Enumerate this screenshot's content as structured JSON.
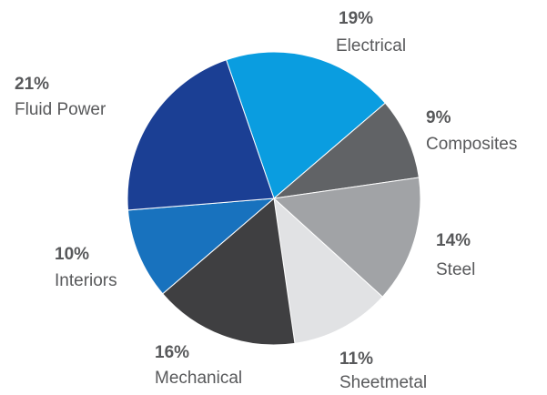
{
  "chart_data": {
    "type": "pie",
    "title": "",
    "legend": "none",
    "slices": [
      {
        "label": "Electrical",
        "percent_label": "19%",
        "value": 19,
        "color": "#0a9de0"
      },
      {
        "label": "Composites",
        "percent_label": "9%",
        "value": 9,
        "color": "#616366"
      },
      {
        "label": "Steel",
        "percent_label": "14%",
        "value": 14,
        "color": "#a1a3a6"
      },
      {
        "label": "Sheetmetal",
        "percent_label": "11%",
        "value": 11,
        "color": "#e1e2e4"
      },
      {
        "label": "Mechanical",
        "percent_label": "16%",
        "value": 16,
        "color": "#3f3f41"
      },
      {
        "label": "Interiors",
        "percent_label": "10%",
        "value": 10,
        "color": "#1872be"
      },
      {
        "label": "Fluid Power",
        "percent_label": "21%",
        "value": 21,
        "color": "#1b3f94"
      }
    ],
    "start_direction": "clockwise from upper-left (Electrical begins near top)"
  }
}
